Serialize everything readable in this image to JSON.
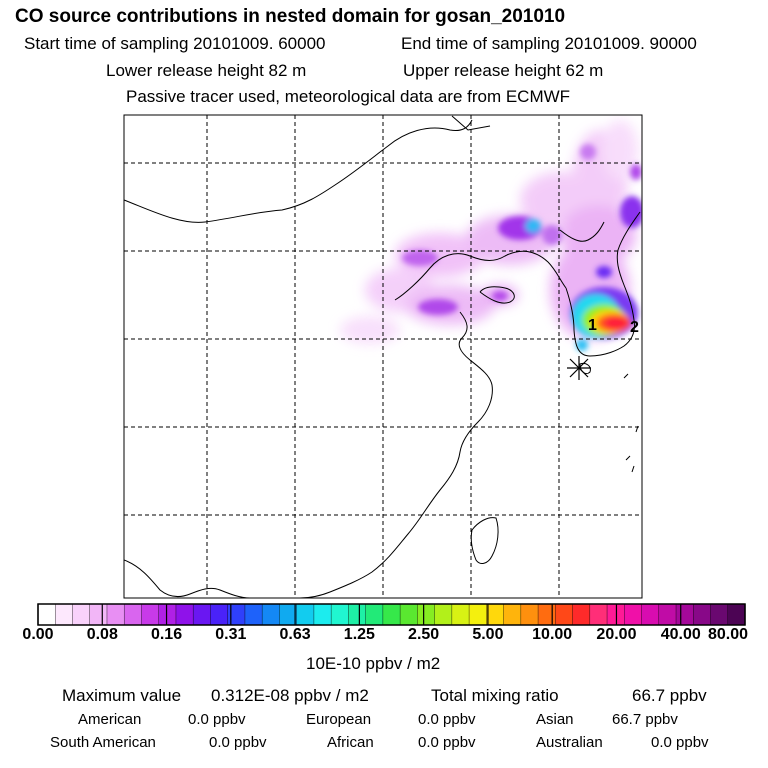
{
  "header": {
    "title": "CO  source contributions in nested domain for gosan_201010",
    "start_label": "Start time of sampling 20101009. 60000",
    "end_label": "End time of sampling 20101009. 90000",
    "lower_label": "Lower release height   82 m",
    "upper_label": "Upper release height   62 m",
    "note": "Passive tracer used, meteorological data are from ECMWF"
  },
  "map": {
    "receptor_labels": [
      "1",
      "2"
    ],
    "receptor_marker": "asterisk-icon"
  },
  "colorbar": {
    "unit": "10E-10 ppbv / m2",
    "tick_labels": [
      "0.00",
      "0.08",
      "0.16",
      "0.31",
      "0.63",
      "1.25",
      "2.50",
      "5.00",
      "10.00",
      "20.00",
      "40.00",
      "80.00"
    ],
    "colors": [
      "#ffffff",
      "#fde8fd",
      "#f9d2fb",
      "#f2b6f7",
      "#e88ff3",
      "#d965ef",
      "#c83ae9",
      "#b020e6",
      "#8f12ea",
      "#6a17f2",
      "#4a22f8",
      "#2f40fb",
      "#1e62fa",
      "#1488f5",
      "#10aaf0",
      "#12ccef",
      "#1cecee",
      "#20f6d0",
      "#1ef0a6",
      "#22ea78",
      "#36e84a",
      "#5ae830",
      "#86ec22",
      "#b2f01a",
      "#d8f214",
      "#f4f00e",
      "#ffd80c",
      "#ffb40c",
      "#ff900e",
      "#ff6c10",
      "#ff4818",
      "#ff2a2a",
      "#ff2e78",
      "#ff1a96",
      "#f010a8",
      "#d80cb0",
      "#c00ca6",
      "#a4089a",
      "#880888",
      "#6a0870",
      "#4c0454"
    ]
  },
  "stats": {
    "max_label": "Maximum value",
    "max_value": "0.312E-08 ppbv / m2",
    "total_label": "Total mixing ratio",
    "total_value": "66.7 ppbv",
    "sources": [
      {
        "name": "American",
        "value": "0.0 ppbv"
      },
      {
        "name": "European",
        "value": "0.0 ppbv"
      },
      {
        "name": "Asian",
        "value": "66.7 ppbv"
      },
      {
        "name": "South American",
        "value": "0.0 ppbv"
      },
      {
        "name": "African",
        "value": "0.0 ppbv"
      },
      {
        "name": "Australian",
        "value": "0.0 ppbv"
      }
    ]
  }
}
